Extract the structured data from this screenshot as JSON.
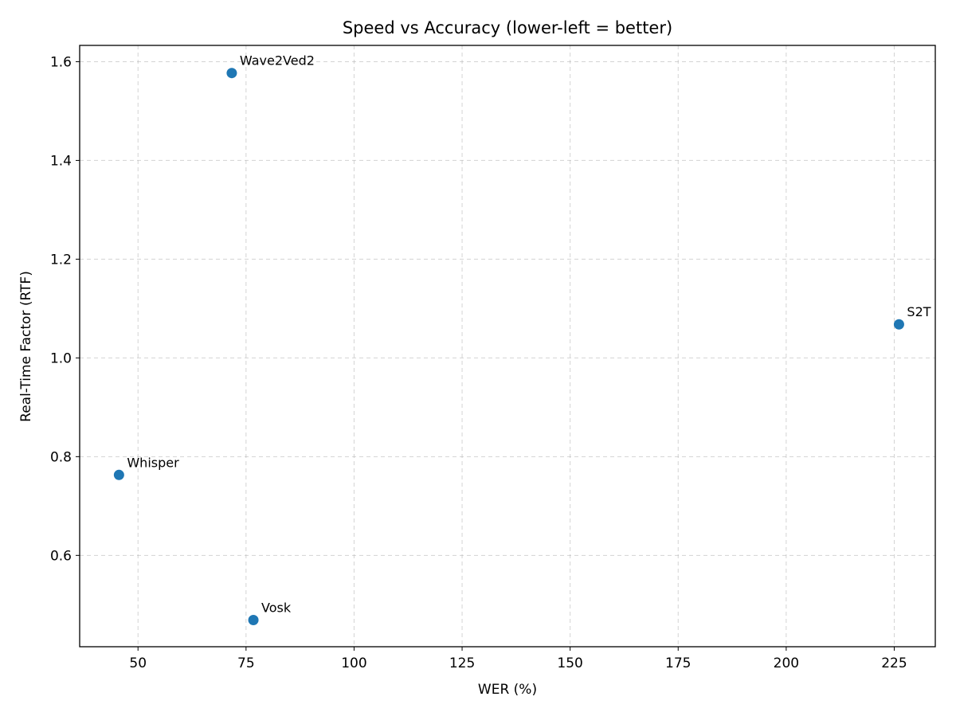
{
  "chart_data": {
    "type": "scatter",
    "title": "Speed vs Accuracy (lower-left = better)",
    "xlabel": "WER (%)",
    "ylabel": "Real-Time Factor (RTF)",
    "xlim": [
      36.5,
      234.5
    ],
    "ylim": [
      0.415,
      1.633
    ],
    "xticks": [
      50,
      75,
      100,
      125,
      150,
      175,
      200,
      225
    ],
    "yticks": [
      0.6,
      0.8,
      1.0,
      1.2,
      1.4,
      1.6
    ],
    "xtick_labels": [
      "50",
      "75",
      "100",
      "125",
      "150",
      "175",
      "200",
      "225"
    ],
    "ytick_labels": [
      "0.6",
      "0.8",
      "1.0",
      "1.2",
      "1.4",
      "1.6"
    ],
    "grid": true,
    "marker_color": "#1f77b4",
    "points": [
      {
        "label": "Wave2Ved2",
        "x": 71.7,
        "y": 1.577
      },
      {
        "label": "S2T",
        "x": 226.1,
        "y": 1.068
      },
      {
        "label": "Whisper",
        "x": 45.6,
        "y": 0.763
      },
      {
        "label": "Vosk",
        "x": 76.7,
        "y": 0.469
      }
    ]
  }
}
